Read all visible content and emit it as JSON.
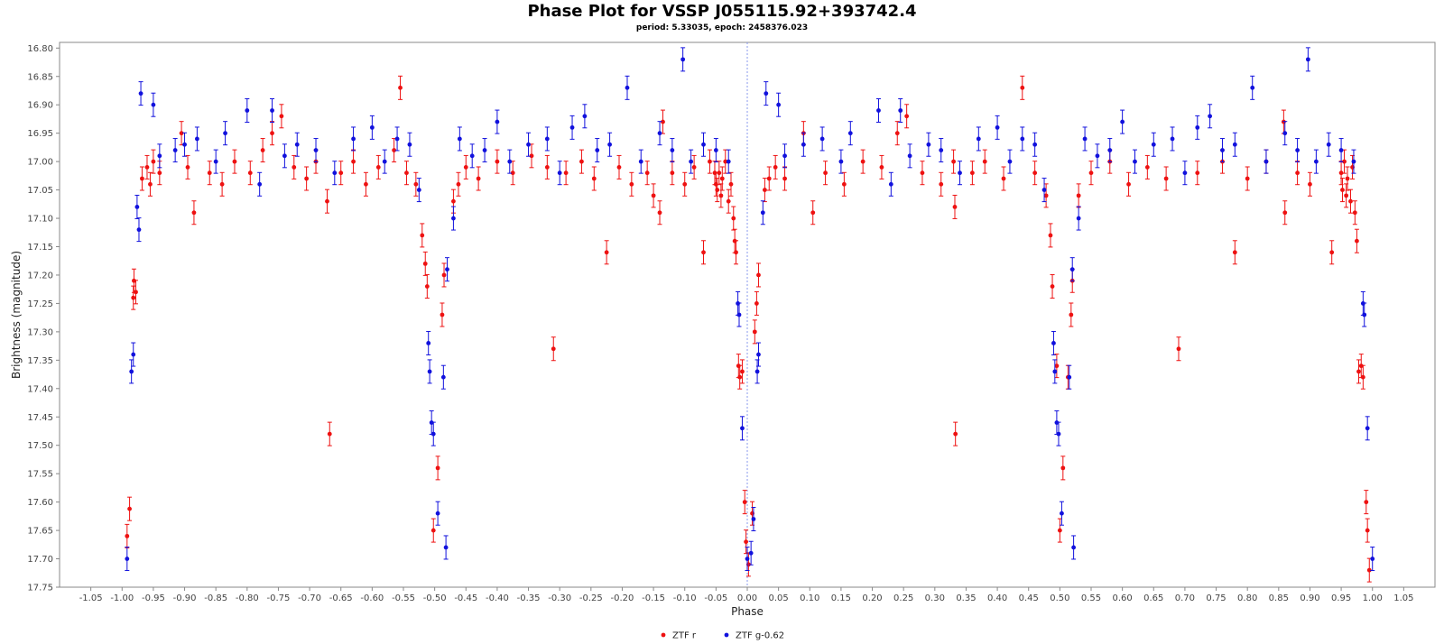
{
  "chart_data": {
    "type": "scatter",
    "title": "Phase Plot for VSSP J055115.92+393742.4",
    "subtitle": "period: 5.33035, epoch: 2458376.023",
    "xlabel": "Phase",
    "ylabel": "Brightness (magnitude)",
    "xlim": [
      -1.1,
      1.1
    ],
    "ylim": [
      17.75,
      16.79
    ],
    "y_inverted": true,
    "x_ticks": [
      "-1.05",
      "-1.00",
      "-0.95",
      "-0.90",
      "-0.85",
      "-0.80",
      "-0.75",
      "-0.70",
      "-0.65",
      "-0.60",
      "-0.55",
      "-0.50",
      "-0.45",
      "-0.40",
      "-0.35",
      "-0.30",
      "-0.25",
      "-0.20",
      "-0.15",
      "-0.10",
      "-0.05",
      "0.00",
      "0.05",
      "0.10",
      "0.15",
      "0.20",
      "0.25",
      "0.30",
      "0.35",
      "0.40",
      "0.45",
      "0.50",
      "0.55",
      "0.60",
      "0.65",
      "0.70",
      "0.75",
      "0.80",
      "0.85",
      "0.90",
      "0.95",
      "1.00",
      "1.05"
    ],
    "y_ticks": [
      "16.80",
      "16.85",
      "16.90",
      "16.95",
      "17.00",
      "17.05",
      "17.10",
      "17.15",
      "17.20",
      "17.25",
      "17.30",
      "17.35",
      "17.40",
      "17.45",
      "17.50",
      "17.55",
      "17.60",
      "17.65",
      "17.70",
      "17.75"
    ],
    "zero_line": true,
    "grid": false,
    "legend_position": "bottom-center",
    "series": [
      {
        "name": "ZTF r",
        "color": "#ee1111",
        "points": [
          [
            -0.992,
            17.66
          ],
          [
            -0.988,
            17.612
          ],
          [
            -0.982,
            17.24
          ],
          [
            -0.981,
            17.21
          ],
          [
            -0.978,
            17.23
          ],
          [
            -0.968,
            17.03
          ],
          [
            -0.96,
            17.01
          ],
          [
            -0.955,
            17.04
          ],
          [
            -0.95,
            17.0
          ],
          [
            -0.94,
            17.02
          ],
          [
            -0.905,
            16.95
          ],
          [
            -0.895,
            17.01
          ],
          [
            -0.885,
            17.09
          ],
          [
            -0.86,
            17.02
          ],
          [
            -0.84,
            17.04
          ],
          [
            -0.82,
            17.0
          ],
          [
            -0.795,
            17.02
          ],
          [
            -0.775,
            16.98
          ],
          [
            -0.76,
            16.95
          ],
          [
            -0.745,
            16.92
          ],
          [
            -0.725,
            17.01
          ],
          [
            -0.705,
            17.03
          ],
          [
            -0.69,
            17.0
          ],
          [
            -0.672,
            17.07
          ],
          [
            -0.668,
            17.48
          ],
          [
            -0.65,
            17.02
          ],
          [
            -0.63,
            17.0
          ],
          [
            -0.61,
            17.04
          ],
          [
            -0.59,
            17.01
          ],
          [
            -0.565,
            16.98
          ],
          [
            -0.555,
            16.87
          ],
          [
            -0.545,
            17.02
          ],
          [
            -0.53,
            17.04
          ],
          [
            -0.52,
            17.13
          ],
          [
            -0.515,
            17.18
          ],
          [
            -0.512,
            17.22
          ],
          [
            -0.502,
            17.65
          ],
          [
            -0.495,
            17.54
          ],
          [
            -0.488,
            17.27
          ],
          [
            -0.485,
            17.2
          ],
          [
            -0.47,
            17.07
          ],
          [
            -0.462,
            17.04
          ],
          [
            -0.45,
            17.01
          ],
          [
            -0.43,
            17.03
          ],
          [
            -0.4,
            17.0
          ],
          [
            -0.375,
            17.02
          ],
          [
            -0.345,
            16.99
          ],
          [
            -0.32,
            17.01
          ],
          [
            -0.31,
            17.33
          ],
          [
            -0.29,
            17.02
          ],
          [
            -0.265,
            17.0
          ],
          [
            -0.245,
            17.03
          ],
          [
            -0.225,
            17.16
          ],
          [
            -0.205,
            17.01
          ],
          [
            -0.185,
            17.04
          ],
          [
            -0.16,
            17.02
          ],
          [
            -0.15,
            17.06
          ],
          [
            -0.14,
            17.09
          ],
          [
            -0.135,
            16.93
          ],
          [
            -0.12,
            17.02
          ],
          [
            -0.1,
            17.04
          ],
          [
            -0.085,
            17.01
          ],
          [
            -0.07,
            17.16
          ],
          [
            -0.06,
            17.0
          ],
          [
            -0.052,
            17.02
          ],
          [
            -0.05,
            17.04
          ],
          [
            -0.048,
            17.05
          ],
          [
            -0.045,
            17.02
          ],
          [
            -0.042,
            17.06
          ],
          [
            -0.04,
            17.03
          ],
          [
            -0.035,
            17.0
          ],
          [
            -0.03,
            17.07
          ],
          [
            -0.026,
            17.04
          ],
          [
            -0.022,
            17.1
          ],
          [
            -0.02,
            17.14
          ],
          [
            -0.018,
            17.16
          ],
          [
            -0.014,
            17.36
          ],
          [
            -0.012,
            17.38
          ],
          [
            -0.008,
            17.37
          ],
          [
            -0.004,
            17.6
          ],
          [
            -0.002,
            17.67
          ],
          [
            0.002,
            17.71
          ],
          [
            0.008,
            17.62
          ],
          [
            0.012,
            17.3
          ],
          [
            0.015,
            17.25
          ],
          [
            0.018,
            17.2
          ],
          [
            0.028,
            17.05
          ],
          [
            0.035,
            17.03
          ],
          [
            0.045,
            17.01
          ],
          [
            0.06,
            17.03
          ],
          [
            0.09,
            16.95
          ],
          [
            0.105,
            17.09
          ],
          [
            0.125,
            17.02
          ],
          [
            0.155,
            17.04
          ],
          [
            0.185,
            17.0
          ],
          [
            0.215,
            17.01
          ],
          [
            0.24,
            16.95
          ],
          [
            0.255,
            16.92
          ],
          [
            0.28,
            17.02
          ],
          [
            0.31,
            17.04
          ],
          [
            0.33,
            17.0
          ],
          [
            0.332,
            17.08
          ],
          [
            0.333,
            17.48
          ],
          [
            0.36,
            17.02
          ],
          [
            0.38,
            17.0
          ],
          [
            0.41,
            17.03
          ],
          [
            0.44,
            16.87
          ],
          [
            0.46,
            17.02
          ],
          [
            0.478,
            17.06
          ],
          [
            0.485,
            17.13
          ],
          [
            0.488,
            17.22
          ],
          [
            0.495,
            17.36
          ],
          [
            0.5,
            17.65
          ],
          [
            0.505,
            17.54
          ],
          [
            0.513,
            17.38
          ],
          [
            0.518,
            17.27
          ],
          [
            0.52,
            17.21
          ],
          [
            0.53,
            17.06
          ],
          [
            0.55,
            17.02
          ],
          [
            0.58,
            17.0
          ],
          [
            0.61,
            17.04
          ],
          [
            0.64,
            17.01
          ],
          [
            0.67,
            17.03
          ],
          [
            0.69,
            17.33
          ],
          [
            0.72,
            17.02
          ],
          [
            0.76,
            17.0
          ],
          [
            0.78,
            17.16
          ],
          [
            0.8,
            17.03
          ],
          [
            0.83,
            17.0
          ],
          [
            0.858,
            16.93
          ],
          [
            0.86,
            17.09
          ],
          [
            0.88,
            17.02
          ],
          [
            0.9,
            17.04
          ],
          [
            0.935,
            17.16
          ],
          [
            0.95,
            17.02
          ],
          [
            0.952,
            17.05
          ],
          [
            0.955,
            17.0
          ],
          [
            0.958,
            17.06
          ],
          [
            0.96,
            17.03
          ],
          [
            0.965,
            17.07
          ],
          [
            0.968,
            17.01
          ],
          [
            0.972,
            17.09
          ],
          [
            0.975,
            17.14
          ],
          [
            0.978,
            17.37
          ],
          [
            0.982,
            17.36
          ],
          [
            0.985,
            17.38
          ],
          [
            0.99,
            17.6
          ],
          [
            0.992,
            17.65
          ],
          [
            0.995,
            17.72
          ]
        ]
      },
      {
        "name": "ZTF g-0.62",
        "color": "#1111dd",
        "points": [
          [
            -0.992,
            17.7
          ],
          [
            -0.985,
            17.37
          ],
          [
            -0.982,
            17.34
          ],
          [
            -0.976,
            17.08
          ],
          [
            -0.973,
            17.12
          ],
          [
            -0.97,
            16.88
          ],
          [
            -0.95,
            16.9
          ],
          [
            -0.94,
            16.99
          ],
          [
            -0.915,
            16.98
          ],
          [
            -0.9,
            16.97
          ],
          [
            -0.88,
            16.96
          ],
          [
            -0.85,
            17.0
          ],
          [
            -0.835,
            16.95
          ],
          [
            -0.8,
            16.91
          ],
          [
            -0.78,
            17.04
          ],
          [
            -0.76,
            16.91
          ],
          [
            -0.74,
            16.99
          ],
          [
            -0.72,
            16.97
          ],
          [
            -0.69,
            16.98
          ],
          [
            -0.66,
            17.02
          ],
          [
            -0.63,
            16.96
          ],
          [
            -0.6,
            16.94
          ],
          [
            -0.58,
            17.0
          ],
          [
            -0.56,
            16.96
          ],
          [
            -0.54,
            16.97
          ],
          [
            -0.525,
            17.05
          ],
          [
            -0.51,
            17.32
          ],
          [
            -0.508,
            17.37
          ],
          [
            -0.505,
            17.46
          ],
          [
            -0.502,
            17.48
          ],
          [
            -0.495,
            17.62
          ],
          [
            -0.486,
            17.38
          ],
          [
            -0.482,
            17.68
          ],
          [
            -0.48,
            17.19
          ],
          [
            -0.47,
            17.1
          ],
          [
            -0.46,
            16.96
          ],
          [
            -0.44,
            16.99
          ],
          [
            -0.42,
            16.98
          ],
          [
            -0.4,
            16.93
          ],
          [
            -0.38,
            17.0
          ],
          [
            -0.35,
            16.97
          ],
          [
            -0.32,
            16.96
          ],
          [
            -0.3,
            17.02
          ],
          [
            -0.28,
            16.94
          ],
          [
            -0.26,
            16.92
          ],
          [
            -0.24,
            16.98
          ],
          [
            -0.22,
            16.97
          ],
          [
            -0.192,
            16.87
          ],
          [
            -0.17,
            17.0
          ],
          [
            -0.14,
            16.95
          ],
          [
            -0.12,
            16.98
          ],
          [
            -0.103,
            16.82
          ],
          [
            -0.09,
            17.0
          ],
          [
            -0.07,
            16.97
          ],
          [
            -0.05,
            16.98
          ],
          [
            -0.03,
            17.0
          ],
          [
            -0.015,
            17.25
          ],
          [
            -0.013,
            17.27
          ],
          [
            -0.008,
            17.47
          ],
          [
            0.0,
            17.7
          ],
          [
            0.006,
            17.69
          ],
          [
            0.01,
            17.63
          ],
          [
            0.016,
            17.37
          ],
          [
            0.018,
            17.34
          ],
          [
            0.025,
            17.09
          ],
          [
            0.03,
            16.88
          ],
          [
            0.05,
            16.9
          ],
          [
            0.06,
            16.99
          ],
          [
            0.09,
            16.97
          ],
          [
            0.12,
            16.96
          ],
          [
            0.15,
            17.0
          ],
          [
            0.165,
            16.95
          ],
          [
            0.21,
            16.91
          ],
          [
            0.23,
            17.04
          ],
          [
            0.245,
            16.91
          ],
          [
            0.26,
            16.99
          ],
          [
            0.29,
            16.97
          ],
          [
            0.31,
            16.98
          ],
          [
            0.34,
            17.02
          ],
          [
            0.37,
            16.96
          ],
          [
            0.4,
            16.94
          ],
          [
            0.42,
            17.0
          ],
          [
            0.44,
            16.96
          ],
          [
            0.46,
            16.97
          ],
          [
            0.475,
            17.05
          ],
          [
            0.49,
            17.32
          ],
          [
            0.492,
            17.37
          ],
          [
            0.495,
            17.46
          ],
          [
            0.498,
            17.48
          ],
          [
            0.503,
            17.62
          ],
          [
            0.515,
            17.38
          ],
          [
            0.52,
            17.19
          ],
          [
            0.522,
            17.68
          ],
          [
            0.53,
            17.1
          ],
          [
            0.54,
            16.96
          ],
          [
            0.56,
            16.99
          ],
          [
            0.58,
            16.98
          ],
          [
            0.6,
            16.93
          ],
          [
            0.62,
            17.0
          ],
          [
            0.65,
            16.97
          ],
          [
            0.68,
            16.96
          ],
          [
            0.7,
            17.02
          ],
          [
            0.72,
            16.94
          ],
          [
            0.74,
            16.92
          ],
          [
            0.76,
            16.98
          ],
          [
            0.78,
            16.97
          ],
          [
            0.808,
            16.87
          ],
          [
            0.83,
            17.0
          ],
          [
            0.86,
            16.95
          ],
          [
            0.88,
            16.98
          ],
          [
            0.897,
            16.82
          ],
          [
            0.91,
            17.0
          ],
          [
            0.93,
            16.97
          ],
          [
            0.95,
            16.98
          ],
          [
            0.97,
            17.0
          ],
          [
            0.985,
            17.25
          ],
          [
            0.987,
            17.27
          ],
          [
            0.992,
            17.47
          ],
          [
            1.0,
            17.7
          ]
        ]
      }
    ]
  }
}
